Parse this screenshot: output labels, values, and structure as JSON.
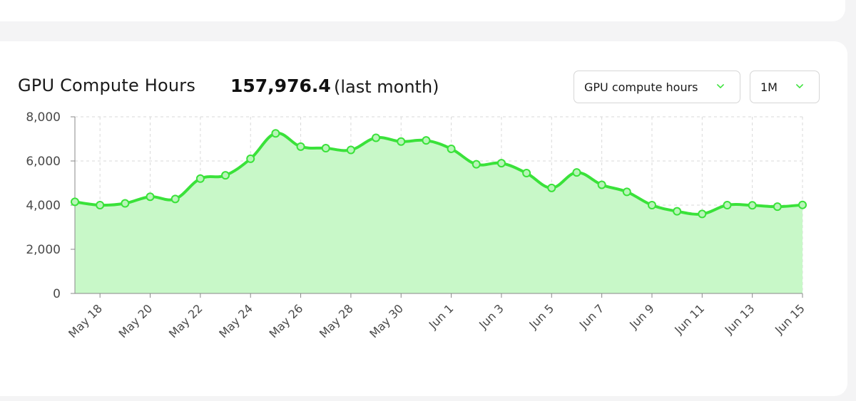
{
  "header": {
    "title": "GPU Compute Hours",
    "total_value": "157,976.4",
    "period": "(last month)"
  },
  "controls": {
    "metric_select": {
      "selected": "GPU compute hours",
      "icon": "chevron-down-icon"
    },
    "range_select": {
      "selected": "1M",
      "icon": "chevron-down-icon"
    }
  },
  "colors": {
    "line": "#3ae23a",
    "fill": "#c8f8c8",
    "grid": "#d9d9d9",
    "axis": "#888888"
  },
  "chart_data": {
    "type": "area",
    "title": "GPU Compute Hours",
    "xlabel": "",
    "ylabel": "",
    "ylim": [
      0,
      8000
    ],
    "y_ticks": [
      "0",
      "2,000",
      "4,000",
      "6,000",
      "8,000"
    ],
    "y_tick_values": [
      0,
      2000,
      4000,
      6000,
      8000
    ],
    "x_tick_labels": [
      "May 18",
      "May 20",
      "May 22",
      "May 24",
      "May 26",
      "May 28",
      "May 30",
      "Jun 1",
      "Jun 3",
      "Jun 5",
      "Jun 7",
      "Jun 9",
      "Jun 11",
      "Jun 13",
      "Jun 15"
    ],
    "grid": true,
    "legend": "none",
    "x": [
      "May 17",
      "May 18",
      "May 19",
      "May 20",
      "May 21",
      "May 22",
      "May 23",
      "May 24",
      "May 25",
      "May 26",
      "May 27",
      "May 28",
      "May 29",
      "May 30",
      "May 31",
      "Jun 1",
      "Jun 2",
      "Jun 3",
      "Jun 4",
      "Jun 5",
      "Jun 6",
      "Jun 7",
      "Jun 8",
      "Jun 9",
      "Jun 10",
      "Jun 11",
      "Jun 12",
      "Jun 13",
      "Jun 14",
      "Jun 15"
    ],
    "values": [
      4150,
      4000,
      4080,
      4380,
      4280,
      5200,
      5350,
      6100,
      7250,
      6650,
      6580,
      6500,
      7050,
      6880,
      6930,
      6550,
      5850,
      5900,
      5450,
      4780,
      5480,
      4920,
      4600,
      4000,
      3720,
      3600,
      4000,
      3990,
      3930,
      4010
    ]
  }
}
